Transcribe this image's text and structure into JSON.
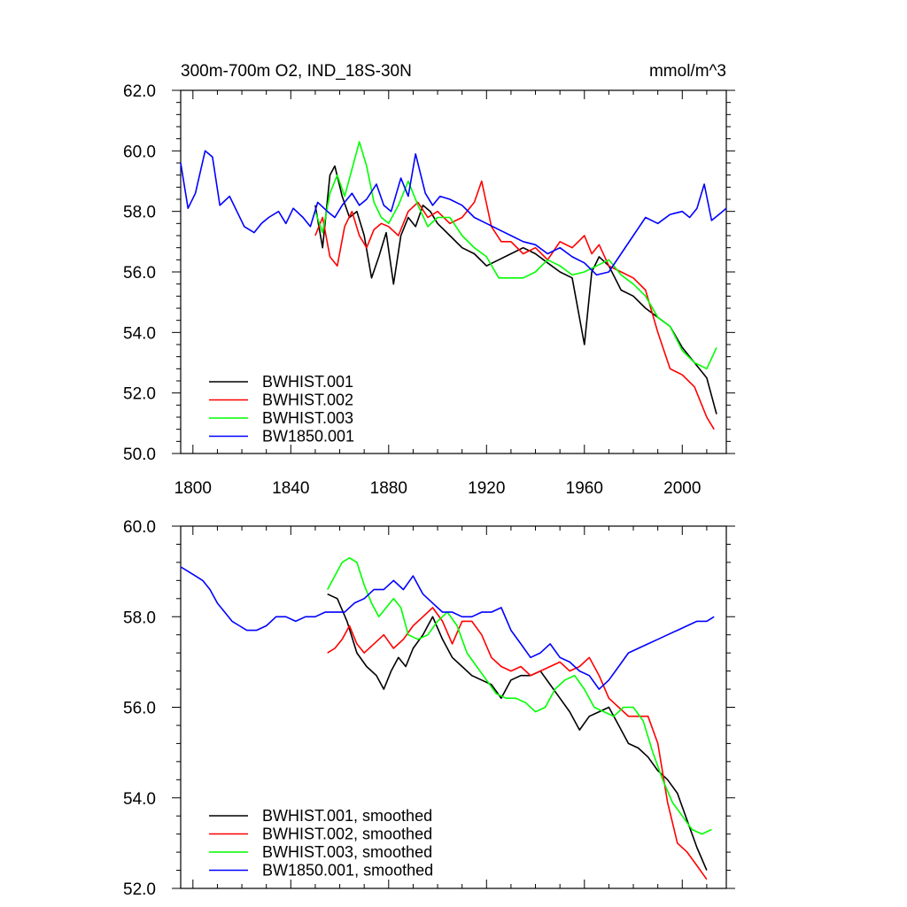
{
  "chart_data": [
    {
      "type": "line",
      "title": "300m-700m O2, IND_18S-30N",
      "units": "mmol/m^3",
      "xlim": [
        1795,
        2018
      ],
      "ylim": [
        50,
        62
      ],
      "xticks": [
        1800,
        1840,
        1880,
        1920,
        1960,
        2000
      ],
      "yticks": [
        50,
        52,
        54,
        56,
        58,
        60,
        62
      ],
      "ytick_labels": [
        "50.0",
        "52.0",
        "54.0",
        "56.0",
        "58.0",
        "60.0",
        "62.0"
      ],
      "legend_position": "bottom-left",
      "grid": false,
      "series": [
        {
          "name": "BWHIST.001",
          "color": "#000000",
          "x": [
            1850,
            1853,
            1856,
            1858,
            1861,
            1864,
            1867,
            1870,
            1873,
            1876,
            1879,
            1882,
            1885,
            1888,
            1891,
            1894,
            1897,
            1900,
            1905,
            1910,
            1915,
            1920,
            1925,
            1930,
            1935,
            1940,
            1945,
            1950,
            1955,
            1960,
            1963,
            1966,
            1970,
            1975,
            1980,
            1985,
            1990,
            1995,
            2000,
            2005,
            2010,
            2014
          ],
          "y": [
            58.2,
            56.8,
            59.2,
            59.5,
            58.5,
            57.8,
            58.0,
            57.2,
            55.8,
            56.5,
            57.3,
            55.6,
            57.2,
            57.8,
            57.5,
            58.2,
            58.0,
            57.6,
            57.2,
            56.8,
            56.6,
            56.2,
            56.4,
            56.6,
            56.8,
            56.6,
            56.3,
            56.0,
            55.8,
            53.6,
            56.0,
            56.5,
            56.2,
            55.4,
            55.2,
            54.8,
            54.5,
            54.2,
            53.5,
            53.0,
            52.5,
            51.3
          ]
        },
        {
          "name": "BWHIST.002",
          "color": "#ff0000",
          "x": [
            1850,
            1853,
            1856,
            1859,
            1862,
            1865,
            1868,
            1871,
            1874,
            1877,
            1880,
            1884,
            1888,
            1892,
            1896,
            1900,
            1905,
            1910,
            1915,
            1918,
            1922,
            1926,
            1930,
            1935,
            1940,
            1945,
            1950,
            1955,
            1960,
            1963,
            1966,
            1970,
            1975,
            1980,
            1985,
            1990,
            1995,
            2000,
            2005,
            2010,
            2013
          ],
          "y": [
            57.2,
            57.8,
            56.5,
            56.2,
            57.5,
            58.0,
            57.2,
            56.8,
            57.4,
            57.6,
            57.5,
            57.2,
            58.0,
            58.3,
            57.8,
            58.0,
            57.6,
            57.8,
            58.3,
            59.0,
            57.5,
            57.0,
            57.0,
            56.6,
            56.8,
            56.4,
            57.0,
            56.8,
            57.2,
            56.6,
            56.9,
            56.2,
            56.0,
            55.8,
            55.4,
            54.0,
            52.8,
            52.6,
            52.2,
            51.2,
            50.8
          ]
        },
        {
          "name": "BWHIST.003",
          "color": "#00ff00",
          "x": [
            1850,
            1853,
            1856,
            1859,
            1862,
            1865,
            1868,
            1871,
            1874,
            1877,
            1880,
            1884,
            1888,
            1892,
            1896,
            1900,
            1905,
            1910,
            1915,
            1920,
            1925,
            1930,
            1935,
            1940,
            1945,
            1950,
            1955,
            1960,
            1965,
            1970,
            1975,
            1980,
            1985,
            1990,
            1995,
            2000,
            2005,
            2010,
            2014
          ],
          "y": [
            58.0,
            57.3,
            58.6,
            59.2,
            58.5,
            59.4,
            60.3,
            59.5,
            58.3,
            57.8,
            57.6,
            58.2,
            59.0,
            58.2,
            57.5,
            57.8,
            57.8,
            57.2,
            56.8,
            56.5,
            55.8,
            55.8,
            55.8,
            56.0,
            56.4,
            56.2,
            55.9,
            56.0,
            56.2,
            56.4,
            55.9,
            55.6,
            55.2,
            54.5,
            54.2,
            53.4,
            53.0,
            52.8,
            53.5
          ]
        },
        {
          "name": "BW1850.001",
          "color": "#0000ff",
          "x": [
            1795,
            1798,
            1801,
            1805,
            1808,
            1811,
            1815,
            1818,
            1821,
            1825,
            1828,
            1831,
            1835,
            1838,
            1841,
            1845,
            1848,
            1851,
            1855,
            1858,
            1861,
            1865,
            1868,
            1871,
            1875,
            1878,
            1881,
            1885,
            1888,
            1891,
            1895,
            1898,
            1901,
            1905,
            1910,
            1915,
            1920,
            1925,
            1930,
            1935,
            1940,
            1945,
            1950,
            1955,
            1960,
            1965,
            1970,
            1975,
            1980,
            1985,
            1990,
            1995,
            2000,
            2003,
            2006,
            2009,
            2012,
            2015,
            2018
          ],
          "y": [
            59.6,
            58.1,
            58.6,
            60.0,
            59.8,
            58.2,
            58.5,
            58.0,
            57.5,
            57.3,
            57.6,
            57.8,
            58.0,
            57.6,
            58.1,
            57.8,
            57.5,
            58.3,
            58.0,
            57.8,
            58.2,
            58.6,
            58.2,
            58.4,
            58.9,
            58.2,
            58.0,
            59.1,
            58.5,
            59.9,
            58.6,
            58.2,
            58.5,
            58.4,
            58.2,
            57.8,
            57.6,
            57.4,
            57.2,
            57.0,
            56.9,
            56.6,
            56.8,
            56.5,
            56.3,
            55.9,
            56.0,
            56.6,
            57.2,
            57.8,
            57.6,
            57.9,
            58.0,
            57.8,
            58.1,
            58.9,
            57.7,
            57.9,
            58.1
          ]
        }
      ]
    },
    {
      "type": "line",
      "xlim": [
        1795,
        2018
      ],
      "ylim": [
        52,
        60
      ],
      "xticks": [
        1800,
        1840,
        1880,
        1920,
        1960,
        2000
      ],
      "yticks": [
        52,
        54,
        56,
        58,
        60
      ],
      "ytick_labels": [
        "52.0",
        "54.0",
        "56.0",
        "58.0",
        "60.0"
      ],
      "legend_position": "bottom-left",
      "grid": false,
      "series": [
        {
          "name": "BWHIST.001, smoothed",
          "color": "#000000",
          "x": [
            1855,
            1859,
            1863,
            1867,
            1871,
            1875,
            1878,
            1881,
            1884,
            1887,
            1890,
            1894,
            1898,
            1902,
            1906,
            1910,
            1914,
            1918,
            1922,
            1926,
            1930,
            1934,
            1938,
            1942,
            1946,
            1950,
            1954,
            1958,
            1962,
            1966,
            1970,
            1974,
            1978,
            1982,
            1986,
            1990,
            1994,
            1998,
            2002,
            2006,
            2010
          ],
          "y": [
            58.5,
            58.4,
            57.9,
            57.2,
            56.9,
            56.7,
            56.4,
            56.8,
            57.1,
            56.9,
            57.3,
            57.6,
            58.0,
            57.5,
            57.1,
            56.9,
            56.7,
            56.6,
            56.5,
            56.2,
            56.6,
            56.7,
            56.7,
            56.8,
            56.5,
            56.2,
            55.9,
            55.5,
            55.8,
            55.9,
            56.0,
            55.6,
            55.2,
            55.1,
            54.9,
            54.6,
            54.4,
            54.1,
            53.5,
            52.9,
            52.4
          ]
        },
        {
          "name": "BWHIST.002, smoothed",
          "color": "#ff0000",
          "x": [
            1855,
            1858,
            1861,
            1864,
            1867,
            1870,
            1874,
            1878,
            1882,
            1886,
            1890,
            1894,
            1898,
            1902,
            1906,
            1910,
            1914,
            1918,
            1922,
            1926,
            1930,
            1934,
            1938,
            1942,
            1946,
            1950,
            1954,
            1958,
            1962,
            1966,
            1970,
            1974,
            1978,
            1982,
            1986,
            1990,
            1994,
            1998,
            2002,
            2006,
            2010
          ],
          "y": [
            57.2,
            57.3,
            57.5,
            57.8,
            57.4,
            57.2,
            57.4,
            57.6,
            57.3,
            57.5,
            57.8,
            58.0,
            58.2,
            57.9,
            57.4,
            57.9,
            57.9,
            57.6,
            57.1,
            56.9,
            56.8,
            56.9,
            56.7,
            56.8,
            56.9,
            57.0,
            56.8,
            56.9,
            57.1,
            56.7,
            56.2,
            56.0,
            55.8,
            55.8,
            55.8,
            55.2,
            53.9,
            53.0,
            52.8,
            52.5,
            52.2
          ]
        },
        {
          "name": "BWHIST.003, smoothed",
          "color": "#00ff00",
          "x": [
            1855,
            1858,
            1861,
            1864,
            1867,
            1870,
            1873,
            1876,
            1879,
            1882,
            1885,
            1888,
            1892,
            1896,
            1900,
            1904,
            1908,
            1912,
            1916,
            1920,
            1924,
            1928,
            1932,
            1936,
            1940,
            1944,
            1948,
            1952,
            1956,
            1960,
            1964,
            1968,
            1972,
            1976,
            1980,
            1984,
            1988,
            1992,
            1996,
            2000,
            2004,
            2008,
            2012
          ],
          "y": [
            58.6,
            58.9,
            59.2,
            59.3,
            59.2,
            58.7,
            58.3,
            58.0,
            58.2,
            58.4,
            58.2,
            57.6,
            57.5,
            57.6,
            57.9,
            58.1,
            57.8,
            57.2,
            56.9,
            56.6,
            56.3,
            56.2,
            56.2,
            56.1,
            55.9,
            56.0,
            56.4,
            56.6,
            56.7,
            56.4,
            56.0,
            55.9,
            55.8,
            56.0,
            56.0,
            55.7,
            55.0,
            54.4,
            53.9,
            53.6,
            53.3,
            53.2,
            53.3
          ]
        },
        {
          "name": "BW1850.001, smoothed",
          "color": "#0000ff",
          "x": [
            1795,
            1798,
            1801,
            1804,
            1807,
            1810,
            1813,
            1816,
            1819,
            1822,
            1826,
            1830,
            1834,
            1838,
            1842,
            1846,
            1850,
            1854,
            1858,
            1862,
            1866,
            1870,
            1874,
            1878,
            1882,
            1886,
            1890,
            1894,
            1898,
            1902,
            1906,
            1910,
            1914,
            1918,
            1922,
            1926,
            1930,
            1934,
            1938,
            1942,
            1946,
            1950,
            1954,
            1958,
            1962,
            1966,
            1970,
            1974,
            1978,
            1982,
            1986,
            1990,
            1994,
            1998,
            2002,
            2006,
            2010,
            2013
          ],
          "y": [
            59.1,
            59.0,
            58.9,
            58.8,
            58.6,
            58.3,
            58.1,
            57.9,
            57.8,
            57.7,
            57.7,
            57.8,
            58.0,
            58.0,
            57.9,
            58.0,
            58.0,
            58.1,
            58.1,
            58.1,
            58.3,
            58.4,
            58.6,
            58.6,
            58.8,
            58.6,
            58.9,
            58.5,
            58.3,
            58.1,
            58.1,
            58.0,
            58.0,
            58.1,
            58.1,
            58.2,
            57.7,
            57.4,
            57.1,
            57.2,
            57.4,
            57.1,
            57.0,
            56.8,
            56.7,
            56.4,
            56.6,
            56.9,
            57.2,
            57.3,
            57.4,
            57.5,
            57.6,
            57.7,
            57.8,
            57.9,
            57.9,
            58.0
          ]
        }
      ]
    }
  ]
}
